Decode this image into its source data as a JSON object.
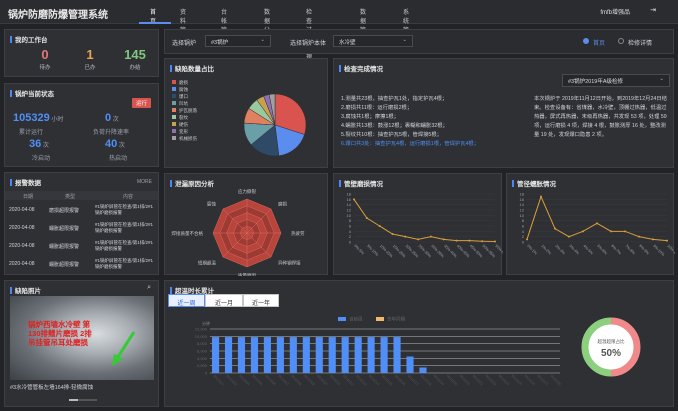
{
  "header": {
    "title": "锅炉防磨防爆管理系统",
    "nav": [
      "首页",
      "资料管理",
      "台帐管理",
      "数据分析",
      "检查过程管理",
      "数据管理",
      "系统管理"
    ],
    "user": "fmfb增强品"
  },
  "selectors": {
    "boiler_label": "选择锅炉",
    "boiler_value": "#3锅炉",
    "body_label": "选择锅炉本体",
    "body_value": "水冷壁",
    "radio_home": "首页",
    "radio_detail": "检修详情"
  },
  "work": {
    "title": "我的工作台",
    "items": [
      {
        "value": "0",
        "label": "待办",
        "color": "#e07878"
      },
      {
        "value": "1",
        "label": "已办",
        "color": "#e7a35a"
      },
      {
        "value": "145",
        "label": "办结",
        "color": "#7fc77f"
      }
    ]
  },
  "status": {
    "title": "锅炉当前状态",
    "badge": "运行",
    "stats": [
      {
        "value": "105329",
        "unit": "小时",
        "label": "累计运行"
      },
      {
        "value": "0",
        "unit": "次",
        "label": "负荷升降速率"
      },
      {
        "value": "36",
        "unit": "次",
        "label": "冷启动"
      },
      {
        "value": "40",
        "unit": "次",
        "label": "热启动"
      }
    ]
  },
  "alarms": {
    "title": "报警数据",
    "more": "MORE",
    "headers": [
      "日期",
      "类型",
      "内容"
    ],
    "rows": [
      {
        "date": "2020-04-08",
        "type": "磨损超限报警",
        "content": "#1锅炉屏管在检查/第1排/2#1锅炉磨损报警"
      },
      {
        "date": "2020-04-08",
        "type": "蠕胀超限报警",
        "content": "#1锅炉屏管在检查/第1排/2#1锅炉磨损报警"
      },
      {
        "date": "2020-04-08",
        "type": "蠕胀超限报警",
        "content": "#1锅炉屏管在检查/第1排/2#1锅炉磨损报警"
      },
      {
        "date": "2020-04-08",
        "type": "蠕胀超限报警",
        "content": "#1锅炉屏管在检查/第1排/2#1锅炉磨损报警"
      }
    ]
  },
  "photo": {
    "title": "缺陷照片",
    "overlay": "锅炉西墙水冷壁 第130排鳍片磨损 2排吊挂管吊耳处磨损",
    "caption": "#3水冷管管板左墙164排-轻微腐蚀"
  },
  "defect_share": {
    "title": "缺陷数量占比",
    "legend": [
      {
        "name": "磨损",
        "color": "#d9534f"
      },
      {
        "name": "腐蚀",
        "color": "#5b8def"
      },
      {
        "name": "爆口",
        "color": "#2e4a66"
      },
      {
        "name": "凹坑",
        "color": "#6b9fa8"
      },
      {
        "name": "护瓦脱落",
        "color": "#e08060"
      },
      {
        "name": "裂纹",
        "color": "#9ac9a0"
      },
      {
        "name": "硬伤",
        "color": "#c9a050"
      },
      {
        "name": "变形",
        "color": "#8e6fb4"
      },
      {
        "name": "机械损伤",
        "color": "#a0a0a0"
      }
    ],
    "values": [
      30,
      18,
      16,
      12,
      8,
      6,
      4,
      3,
      3
    ]
  },
  "check": {
    "title": "检查完成情况",
    "selector": "#3锅炉2019年A级检修",
    "left": [
      "1.测量共23根，抽查护瓦1处，指定护瓦4根；",
      "2.磨损共11根：运行磨损2根；",
      "3.腐蚀共1根；摩擦1根；",
      "4.蠕胀共13根：鼓涨12根；裹糊和蠕胀32根；",
      "5.裂纹共10根：抽查护瓦5根，管焊接5根；",
      "6.爆口共3处：抽查护瓦4根，运行磨损1根，管焊护瓦4根；"
    ],
    "right": "本次锅炉于 2019年11月12日开始，到2019年12月24日结束。检查设备有：省煤器，水冷壁，顶棚过热器，低温过热器，屏式再热器，末级再热器，共发现 53 项，处理 59 项，运行磨损 4 项，焊接 4 根，鼓胀测厚 16 处，整改测量 19 处，发现爆口隐患 2 项。"
  },
  "radar": {
    "title": "泄漏原因分析",
    "axes": [
      "应力撕裂",
      "磨损",
      "热疲劳",
      "异种钢焊接",
      "质量原因",
      "短期超温",
      "焊接质量不合格",
      "腐蚀"
    ]
  },
  "wall": {
    "title": "管壁磨损情况",
    "x": [
      "0%-5%",
      "5%-10%",
      "10%-15%",
      "15%-20%",
      "20%-25%",
      "25%-30%",
      "30%-35%",
      "35%-40%",
      "40%-45%",
      "45%-50%",
      "50%-55%",
      "55%-60%"
    ],
    "values": [
      16,
      9,
      6,
      3,
      2,
      1,
      2,
      1,
      0.5,
      0.5,
      0.3,
      0.2
    ],
    "ylim": [
      0,
      18
    ],
    "ticks": [
      "0",
      "2",
      "4",
      "6",
      "8",
      "10",
      "12",
      "14",
      "16",
      "18"
    ]
  },
  "growth": {
    "title": "管径蠕胀情况",
    "x": [
      "0%-1%",
      "1%-2%",
      "2%-3%",
      "3%-4%",
      "4%-5%",
      "5%-6%",
      "6%-7%",
      "7%-8%",
      "8%-9%",
      "9%-10%",
      "10%-11%"
    ],
    "values": [
      1,
      17,
      5,
      2,
      4,
      7,
      4,
      4,
      2,
      1,
      0.5
    ],
    "ylim": [
      0,
      18
    ],
    "ticks": [
      "0",
      "2",
      "4",
      "6",
      "8",
      "10",
      "12",
      "14",
      "16",
      "18"
    ]
  },
  "overtemp": {
    "title": "超温时长累计",
    "tabs": [
      "近一周",
      "近一月",
      "近一年"
    ],
    "unit": "分钟",
    "legend_cur": "当前周",
    "legend_prev": "去年同期",
    "ticks": [
      "0",
      "2,000",
      "4,000",
      "6,000",
      "8,000",
      "10,000",
      "12,000"
    ],
    "x": [
      "WU1002",
      "WU1003",
      "WU1004",
      "WU1005",
      "WU1006",
      "WU1007",
      "WU1008",
      "WU1009",
      "WU1010",
      "WU1011",
      "WU1012",
      "WU1013",
      "WU1014",
      "WU1015",
      "WU1016",
      "WU1017",
      "WU1018",
      "WU1019",
      "WU1020",
      "WU1021",
      "WU1022",
      "WU1023",
      "WU1024",
      "WU1025",
      "WU1026",
      "WU1027",
      "WU1028"
    ],
    "values": [
      9800,
      9800,
      9800,
      9800,
      9800,
      9800,
      9800,
      9800,
      9800,
      9800,
      9800,
      9800,
      9800,
      9800,
      9800,
      4500,
      1500,
      0,
      0,
      0,
      0,
      0,
      0,
      0,
      0,
      0,
      0
    ],
    "donut_label": "超温超限占比",
    "donut_value": "50%"
  }
}
